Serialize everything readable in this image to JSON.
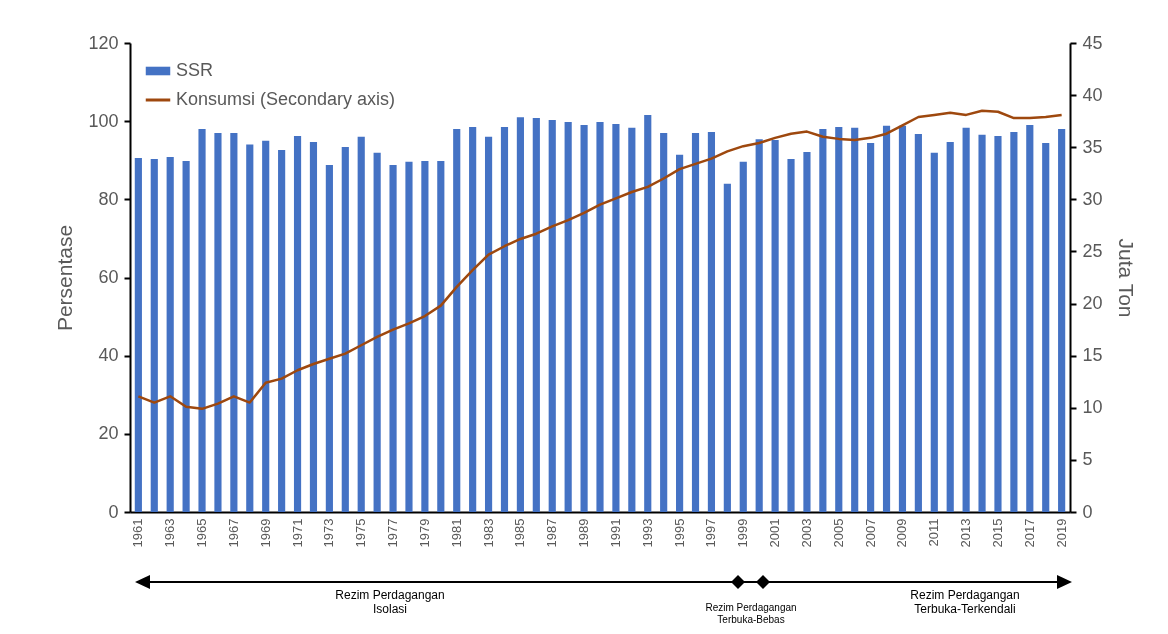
{
  "chart_data": {
    "type": "bar",
    "ylabel": "Persentase",
    "y2label": "Juta Ton",
    "categories": [
      "1961",
      null,
      "1963",
      null,
      "1965",
      null,
      "1967",
      null,
      "1969",
      null,
      "1971",
      null,
      "1973",
      null,
      "1975",
      null,
      "1977",
      null,
      "1979",
      null,
      "1981",
      null,
      "1983",
      null,
      "1985",
      null,
      "1987",
      null,
      "1989",
      null,
      "1991",
      null,
      "1993",
      null,
      "1995",
      null,
      "1997",
      null,
      "1999",
      null,
      "2001",
      null,
      "2003",
      null,
      "2005",
      null,
      "2007",
      null,
      "2009",
      null,
      "2011",
      null,
      "2013",
      null,
      "2015",
      null,
      "2017",
      null,
      "2019"
    ],
    "series": [
      {
        "name": "SSR",
        "color": "#4472c4",
        "values": [
          90.6,
          90.3,
          90.8,
          89.8,
          98,
          97,
          97,
          94,
          95,
          92.6,
          96.2,
          94.7,
          88.8,
          93.4,
          96,
          91.9,
          88.8,
          89.6,
          89.8,
          89.8,
          98,
          98.5,
          96,
          98.5,
          101,
          100.8,
          100.3,
          99.8,
          99,
          99.8,
          99.3,
          98.3,
          101.6,
          97,
          91.4,
          97,
          97.2,
          84,
          89.6,
          95.4,
          95.2,
          90.3,
          92.1,
          98,
          98.5,
          98.3,
          94.4,
          98.8,
          98.8,
          96.7,
          91.9,
          94.7,
          98.3,
          96.5,
          96.2,
          97.2,
          99,
          94.4,
          98
        ]
      },
      {
        "name": "Konsumsi (Secondary axis)",
        "type": "line",
        "axis": "y2",
        "color": "#9e480e",
        "values": [
          11.1,
          10.5,
          11.1,
          10.1,
          9.9,
          10.4,
          11.1,
          10.5,
          12.4,
          12.8,
          13.6,
          14.2,
          14.7,
          15.2,
          16,
          16.8,
          17.5,
          18.1,
          18.8,
          19.8,
          21.6,
          23.2,
          24.7,
          25.5,
          26.2,
          26.7,
          27.4,
          28,
          28.7,
          29.5,
          30.1,
          30.7,
          31.2,
          32,
          32.9,
          33.4,
          33.9,
          34.6,
          35.1,
          35.4,
          35.9,
          36.3,
          36.5,
          36,
          35.8,
          35.7,
          35.9,
          36.3,
          37.1,
          37.9,
          38.1,
          38.3,
          38.1,
          38.5,
          38.4,
          37.8,
          37.8,
          37.9,
          38.1
        ]
      }
    ],
    "ylim": [
      0,
      120
    ],
    "yticks": [
      0,
      20,
      40,
      60,
      80,
      100,
      120
    ],
    "y2lim": [
      0,
      45
    ],
    "y2ticks": [
      0,
      5,
      10,
      15,
      20,
      25,
      30,
      35,
      40,
      45
    ],
    "legend": "top left",
    "annotations": [
      "Rezim Perdagangan\nIsolasi",
      "Rezim Perdagangan\nTerbuka-Bebas",
      "Rezim Perdagangan\nTerbuka-Terkendali"
    ]
  }
}
